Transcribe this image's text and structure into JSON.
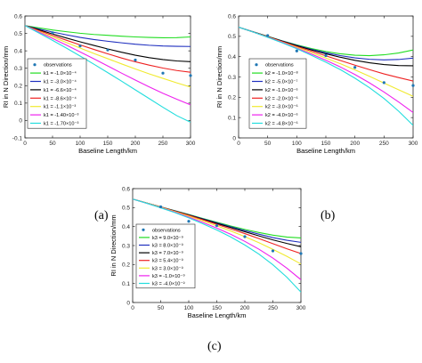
{
  "figure": {
    "captions": [
      "(a)",
      "(b)",
      "(c)"
    ]
  },
  "chart_data": [
    {
      "id": "a",
      "type": "line",
      "xlabel": "Baseline Length/km",
      "ylabel": "RI in N Direction/mm",
      "xlim": [
        0,
        300
      ],
      "ylim": [
        -0.1,
        0.6
      ],
      "xticks": [
        0,
        50,
        100,
        150,
        200,
        250,
        300
      ],
      "yticks": [
        -0.1,
        0,
        0.1,
        0.2,
        0.3,
        0.4,
        0.5,
        0.6
      ],
      "ytick_labels": [
        "-0.1",
        "0",
        "0.1",
        "0.2",
        "0.3",
        "0.4",
        "0.5",
        "0.6"
      ],
      "grid": false,
      "legend_position": "bottom-left",
      "observations": {
        "name": "observations",
        "color": "#1f77b4",
        "x": [
          50,
          100,
          150,
          200,
          250,
          300
        ],
        "y": [
          0.504,
          0.428,
          0.405,
          0.347,
          0.272,
          0.258
        ]
      },
      "x": [
        0,
        25,
        50,
        75,
        100,
        125,
        150,
        175,
        200,
        225,
        250,
        275,
        300
      ],
      "series": [
        {
          "name": "k1 = -1.0×10⁻⁴",
          "color": "#22dd22",
          "values": [
            0.545,
            0.532,
            0.52,
            0.51,
            0.501,
            0.494,
            0.489,
            0.484,
            0.48,
            0.477,
            0.475,
            0.476,
            0.48
          ]
        },
        {
          "name": "k1 = -3.0×10⁻⁴",
          "color": "#1f2fbf",
          "values": [
            0.545,
            0.526,
            0.508,
            0.492,
            0.477,
            0.465,
            0.455,
            0.446,
            0.438,
            0.432,
            0.428,
            0.426,
            0.425
          ]
        },
        {
          "name": "k1 = -6.6×10⁻⁴",
          "color": "#000000",
          "values": [
            0.545,
            0.521,
            0.497,
            0.474,
            0.452,
            0.431,
            0.411,
            0.392,
            0.375,
            0.361,
            0.35,
            0.342,
            0.338
          ]
        },
        {
          "name": "k1 = -8.6×10⁻⁴",
          "color": "#ee2222",
          "values": [
            0.545,
            0.517,
            0.489,
            0.461,
            0.434,
            0.408,
            0.383,
            0.359,
            0.337,
            0.318,
            0.301,
            0.287,
            0.277
          ]
        },
        {
          "name": "k1 = -1.1×10⁻³",
          "color": "#f0ea30",
          "values": [
            0.545,
            0.512,
            0.48,
            0.448,
            0.416,
            0.385,
            0.355,
            0.325,
            0.296,
            0.268,
            0.242,
            0.216,
            0.192
          ]
        },
        {
          "name": "k1 = -1.40×10⁻³",
          "color": "#ee22ee",
          "values": [
            0.545,
            0.508,
            0.471,
            0.433,
            0.394,
            0.354,
            0.313,
            0.272,
            0.232,
            0.193,
            0.156,
            0.122,
            0.09
          ]
        },
        {
          "name": "k1 = -1.70×10⁻³",
          "color": "#22dddd",
          "values": [
            0.545,
            0.503,
            0.46,
            0.416,
            0.37,
            0.323,
            0.275,
            0.226,
            0.176,
            0.126,
            0.076,
            0.028,
            -0.01
          ]
        }
      ]
    },
    {
      "id": "b",
      "type": "line",
      "xlabel": "Baseline Length/km",
      "ylabel": "RI in N Direction/mm",
      "xlim": [
        0,
        300
      ],
      "ylim": [
        0,
        0.6
      ],
      "xticks": [
        0,
        50,
        100,
        150,
        200,
        250,
        300
      ],
      "yticks": [
        0,
        0.1,
        0.2,
        0.3,
        0.4,
        0.5,
        0.6
      ],
      "ytick_labels": [
        "0",
        "0.1",
        "0.2",
        "0.3",
        "0.4",
        "0.5",
        "0.6"
      ],
      "grid": false,
      "legend_position": "bottom-left",
      "observations": {
        "name": "observations",
        "color": "#1f77b4",
        "x": [
          50,
          100,
          150,
          200,
          250,
          300
        ],
        "y": [
          0.504,
          0.428,
          0.405,
          0.347,
          0.272,
          0.258
        ]
      },
      "x": [
        0,
        25,
        50,
        75,
        100,
        125,
        150,
        175,
        200,
        225,
        250,
        275,
        300
      ],
      "series": [
        {
          "name": "k2 = -1.0×10⁻⁸",
          "color": "#22dd22",
          "values": [
            0.545,
            0.522,
            0.5,
            0.478,
            0.458,
            0.44,
            0.425,
            0.414,
            0.407,
            0.405,
            0.409,
            0.418,
            0.433
          ]
        },
        {
          "name": "k2 = -5.0×10⁻⁷",
          "color": "#1f2fbf",
          "values": [
            0.545,
            0.522,
            0.499,
            0.477,
            0.456,
            0.436,
            0.419,
            0.405,
            0.394,
            0.387,
            0.384,
            0.386,
            0.393
          ]
        },
        {
          "name": "k2 = -1.0×10⁻⁶",
          "color": "#000000",
          "values": [
            0.545,
            0.522,
            0.499,
            0.476,
            0.454,
            0.433,
            0.414,
            0.397,
            0.382,
            0.37,
            0.361,
            0.356,
            0.355
          ]
        },
        {
          "name": "k2 = -2.0×10⁻⁶",
          "color": "#ee2222",
          "values": [
            0.545,
            0.521,
            0.498,
            0.474,
            0.45,
            0.427,
            0.404,
            0.381,
            0.358,
            0.336,
            0.315,
            0.297,
            0.28
          ]
        },
        {
          "name": "k2 = -3.0×10⁻⁶",
          "color": "#f0ea30",
          "values": [
            0.545,
            0.521,
            0.497,
            0.472,
            0.446,
            0.42,
            0.393,
            0.365,
            0.335,
            0.303,
            0.27,
            0.237,
            0.205
          ]
        },
        {
          "name": "k2 = -4.0×10⁻⁶",
          "color": "#ee22ee",
          "values": [
            0.545,
            0.521,
            0.496,
            0.47,
            0.442,
            0.413,
            0.382,
            0.349,
            0.312,
            0.271,
            0.226,
            0.177,
            0.125
          ]
        },
        {
          "name": "k2 = -4.8×10⁻⁶",
          "color": "#22dddd",
          "values": [
            0.545,
            0.521,
            0.495,
            0.468,
            0.439,
            0.407,
            0.373,
            0.336,
            0.294,
            0.247,
            0.194,
            0.132,
            0.062
          ]
        }
      ]
    },
    {
      "id": "c",
      "type": "line",
      "xlabel": "Baseline Length/km",
      "ylabel": "RI in N Direction/mm",
      "xlim": [
        0,
        300
      ],
      "ylim": [
        0,
        0.6
      ],
      "xticks": [
        0,
        50,
        100,
        150,
        200,
        250,
        300
      ],
      "yticks": [
        0,
        0.1,
        0.2,
        0.3,
        0.4,
        0.5,
        0.6
      ],
      "ytick_labels": [
        "0",
        "0.1",
        "0.2",
        "0.3",
        "0.4",
        "0.5",
        "0.6"
      ],
      "grid": false,
      "legend_position": "bottom-left",
      "observations": {
        "name": "observations",
        "color": "#1f77b4",
        "x": [
          50,
          100,
          150,
          200,
          250,
          300
        ],
        "y": [
          0.504,
          0.428,
          0.405,
          0.347,
          0.272,
          0.258
        ]
      },
      "x": [
        0,
        25,
        50,
        75,
        100,
        125,
        150,
        175,
        200,
        225,
        250,
        275,
        300
      ],
      "series": [
        {
          "name": "k3 = 9.0×10⁻⁹",
          "color": "#22dd22",
          "values": [
            0.545,
            0.524,
            0.504,
            0.484,
            0.464,
            0.443,
            0.423,
            0.403,
            0.385,
            0.369,
            0.355,
            0.345,
            0.34
          ]
        },
        {
          "name": "k3 = 8.0×10⁻⁹",
          "color": "#1f2fbf",
          "values": [
            0.545,
            0.524,
            0.503,
            0.483,
            0.462,
            0.441,
            0.42,
            0.399,
            0.379,
            0.36,
            0.342,
            0.328,
            0.317
          ]
        },
        {
          "name": "k3 = 7.0×10⁻⁹",
          "color": "#000000",
          "values": [
            0.545,
            0.524,
            0.503,
            0.482,
            0.461,
            0.439,
            0.417,
            0.395,
            0.373,
            0.351,
            0.33,
            0.311,
            0.294
          ]
        },
        {
          "name": "k3 = 5.4×10⁻⁹",
          "color": "#ee2222",
          "values": [
            0.545,
            0.524,
            0.503,
            0.481,
            0.459,
            0.436,
            0.412,
            0.388,
            0.363,
            0.337,
            0.31,
            0.283,
            0.258
          ]
        },
        {
          "name": "k3 = 3.0×10⁻⁹",
          "color": "#f0ea30",
          "values": [
            0.545,
            0.524,
            0.502,
            0.479,
            0.455,
            0.43,
            0.404,
            0.377,
            0.347,
            0.315,
            0.28,
            0.243,
            0.203
          ]
        },
        {
          "name": "k3 = -1.0×10⁻⁹",
          "color": "#ee22ee",
          "values": [
            0.545,
            0.523,
            0.5,
            0.476,
            0.45,
            0.422,
            0.392,
            0.359,
            0.322,
            0.281,
            0.234,
            0.181,
            0.12
          ]
        },
        {
          "name": "k3 = -4.0×10⁻⁹",
          "color": "#22dddd",
          "values": [
            0.545,
            0.523,
            0.499,
            0.474,
            0.446,
            0.415,
            0.382,
            0.345,
            0.303,
            0.255,
            0.199,
            0.133,
            0.055
          ]
        }
      ]
    }
  ]
}
